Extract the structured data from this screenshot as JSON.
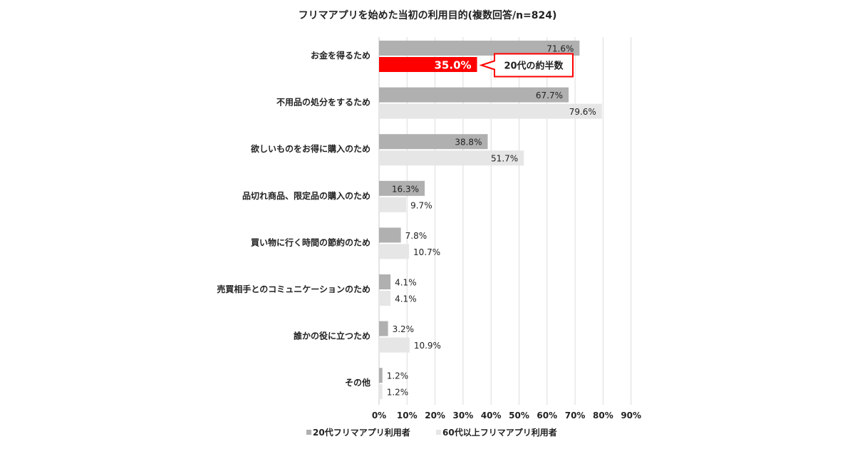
{
  "chart_data": {
    "type": "bar",
    "orientation": "horizontal",
    "title": "フリマアプリを始めた当初の利用目的(複数回答/n=824)",
    "categories": [
      "お金を得るため",
      "不用品の処分をするため",
      "欲しいものをお得に購入のため",
      "品切れ商品、限定品の購入のため",
      "買い物に行く時間の節約のため",
      "売買相手とのコミュニケーションのため",
      "誰かの役に立つため",
      "その他"
    ],
    "series": [
      {
        "name": "20代フリマアプリ利用者",
        "color": "#b0b0b0",
        "values": [
          71.6,
          67.7,
          38.8,
          16.3,
          7.8,
          4.1,
          3.2,
          1.2
        ],
        "labels": [
          "71.6%",
          "67.7%",
          "38.8%",
          "16.3%",
          "7.8%",
          "4.1%",
          "3.2%",
          "1.2%"
        ]
      },
      {
        "name": "60代以上フリマアプリ利用者",
        "color": "#e6e6e6",
        "values": [
          35.0,
          79.6,
          51.7,
          9.7,
          10.7,
          4.1,
          10.9,
          1.2
        ],
        "labels": [
          "35.0%",
          "79.6%",
          "51.7%",
          "9.7%",
          "10.7%",
          "4.1%",
          "10.9%",
          "1.2%"
        ]
      }
    ],
    "highlight": {
      "series": 1,
      "category": 0,
      "color": "#ff0000"
    },
    "callout": {
      "text": "20代の約半数",
      "series": 1,
      "category": 0
    },
    "xlim": [
      0,
      90
    ],
    "xticks": [
      "0%",
      "10%",
      "20%",
      "30%",
      "40%",
      "50%",
      "60%",
      "70%",
      "80%",
      "90%"
    ],
    "grid": true,
    "legend_position": "bottom-left",
    "legend_marker": "■"
  }
}
